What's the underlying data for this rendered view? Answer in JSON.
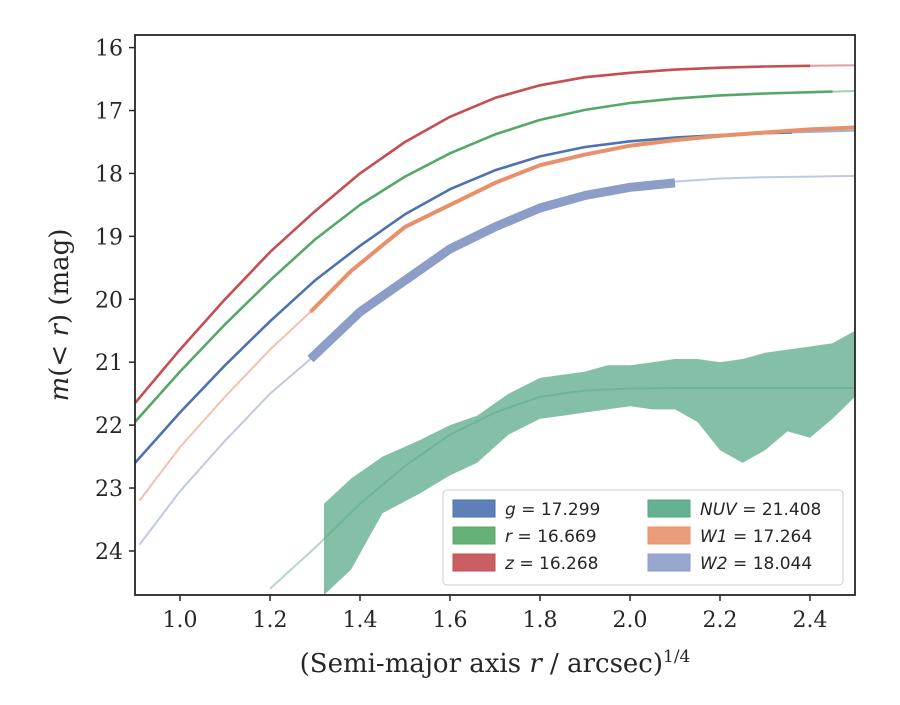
{
  "chart_data": {
    "type": "line",
    "xlabel": "(Semi-major axis r / arcsec)^{1/4}",
    "ylabel": "m(< r) (mag)",
    "xlim": [
      0.9,
      2.5
    ],
    "ylim": [
      24.7,
      15.8
    ],
    "y_inverted": true,
    "x_ticks": [
      "1.0",
      "1.2",
      "1.4",
      "1.6",
      "1.8",
      "2.0",
      "2.2",
      "2.4"
    ],
    "y_ticks": [
      "16",
      "17",
      "18",
      "19",
      "20",
      "21",
      "22",
      "23",
      "24"
    ],
    "legend": {
      "placement": "lower-right",
      "entries": [
        {
          "sym": "g",
          "val": "17.299",
          "color": "#4c72b0"
        },
        {
          "sym": "NUV",
          "val": "21.408",
          "color": "#55a886"
        },
        {
          "sym": "r",
          "val": "16.669",
          "color": "#55a868"
        },
        {
          "sym": "W1",
          "val": "17.264",
          "color": "#e8906a"
        },
        {
          "sym": "z",
          "val": "16.268",
          "color": "#c44e52"
        },
        {
          "sym": "W2",
          "val": "18.044",
          "color": "#8c9dc8"
        }
      ]
    },
    "series": [
      {
        "name": "g",
        "value": "17.299",
        "color": "#4c72b0",
        "x": [
          0.9,
          1.0,
          1.1,
          1.2,
          1.3,
          1.4,
          1.5,
          1.6,
          1.7,
          1.8,
          1.9,
          2.0,
          2.1,
          2.2,
          2.3,
          2.36
        ],
        "y": [
          22.6,
          21.8,
          21.05,
          20.35,
          19.7,
          19.15,
          18.65,
          18.25,
          17.95,
          17.73,
          17.58,
          17.49,
          17.43,
          17.39,
          17.36,
          17.35
        ],
        "model_x": [
          2.36,
          2.5
        ],
        "model_y": [
          17.35,
          17.32
        ]
      },
      {
        "name": "r",
        "value": "16.669",
        "color": "#55a868",
        "x": [
          0.9,
          1.0,
          1.1,
          1.2,
          1.3,
          1.4,
          1.5,
          1.6,
          1.7,
          1.8,
          1.9,
          2.0,
          2.1,
          2.2,
          2.3,
          2.45
        ],
        "y": [
          21.95,
          21.15,
          20.4,
          19.7,
          19.05,
          18.5,
          18.05,
          17.68,
          17.38,
          17.15,
          16.99,
          16.88,
          16.81,
          16.76,
          16.73,
          16.7
        ],
        "model_x": [
          2.45,
          2.5
        ],
        "model_y": [
          16.7,
          16.69
        ]
      },
      {
        "name": "z",
        "value": "16.268",
        "color": "#c44e52",
        "x": [
          0.9,
          1.0,
          1.1,
          1.2,
          1.3,
          1.4,
          1.5,
          1.6,
          1.7,
          1.8,
          1.9,
          2.0,
          2.1,
          2.2,
          2.3,
          2.4
        ],
        "y": [
          21.65,
          20.8,
          20.0,
          19.25,
          18.6,
          18.0,
          17.5,
          17.1,
          16.8,
          16.6,
          16.47,
          16.4,
          16.35,
          16.32,
          16.3,
          16.29
        ],
        "model_x": [
          2.4,
          2.5
        ],
        "model_y": [
          16.29,
          16.28
        ]
      },
      {
        "name": "W1",
        "value": "17.264",
        "color": "#e8906a",
        "x": [
          1.29,
          1.38,
          1.5,
          1.6,
          1.7,
          1.8,
          1.9,
          2.0,
          2.1,
          2.2,
          2.3,
          2.4,
          2.5
        ],
        "y": [
          20.2,
          19.55,
          18.85,
          18.5,
          18.15,
          17.87,
          17.7,
          17.56,
          17.47,
          17.4,
          17.35,
          17.3,
          17.27
        ],
        "width": 4,
        "model_x": [
          0.91,
          1.0,
          1.1,
          1.2,
          1.29
        ],
        "model_y": [
          23.2,
          22.35,
          21.55,
          20.8,
          20.2
        ]
      },
      {
        "name": "W2",
        "value": "18.044",
        "color": "#8c9dc8",
        "x": [
          1.29,
          1.4,
          1.53,
          1.6,
          1.7,
          1.8,
          1.9,
          2.0,
          2.1
        ],
        "y": [
          20.95,
          20.2,
          19.55,
          19.2,
          18.85,
          18.55,
          18.35,
          18.22,
          18.15
        ],
        "width": 9,
        "model_x": [
          0.91,
          1.0,
          1.1,
          1.2,
          1.29,
          1.4,
          1.6,
          1.8,
          2.0,
          2.1,
          2.2,
          2.3,
          2.4,
          2.5
        ],
        "model_y": [
          23.9,
          23.05,
          22.25,
          21.5,
          20.95,
          20.2,
          19.2,
          18.55,
          18.22,
          18.13,
          18.08,
          18.06,
          18.05,
          18.04
        ]
      },
      {
        "name": "NUV",
        "value": "21.408",
        "color": "#55a886",
        "band_x": [
          1.32,
          1.38,
          1.45,
          1.53,
          1.6,
          1.66,
          1.73,
          1.8,
          1.85,
          1.9,
          1.95,
          2.0,
          2.05,
          2.1,
          2.15,
          2.2,
          2.25,
          2.3,
          2.35,
          2.4,
          2.45,
          2.5
        ],
        "band_upper": [
          23.25,
          22.85,
          22.5,
          22.25,
          22.0,
          21.85,
          21.5,
          21.25,
          21.2,
          21.15,
          21.05,
          21.05,
          21.0,
          20.95,
          20.95,
          21.0,
          20.95,
          20.85,
          20.8,
          20.75,
          20.7,
          20.5
        ],
        "band_lower": [
          24.7,
          24.3,
          23.4,
          23.1,
          22.8,
          22.6,
          22.15,
          21.9,
          21.85,
          21.8,
          21.75,
          21.7,
          21.75,
          21.75,
          21.95,
          22.4,
          22.6,
          22.4,
          22.1,
          22.2,
          21.9,
          21.55
        ],
        "model_x": [
          1.2,
          1.3,
          1.4,
          1.5,
          1.6,
          1.7,
          1.8,
          1.9,
          2.0,
          2.1,
          2.2,
          2.3,
          2.4,
          2.5
        ],
        "model_y": [
          24.6,
          23.95,
          23.25,
          22.65,
          22.15,
          21.8,
          21.55,
          21.45,
          21.42,
          21.41,
          21.41,
          21.41,
          21.41,
          21.41
        ]
      }
    ]
  }
}
